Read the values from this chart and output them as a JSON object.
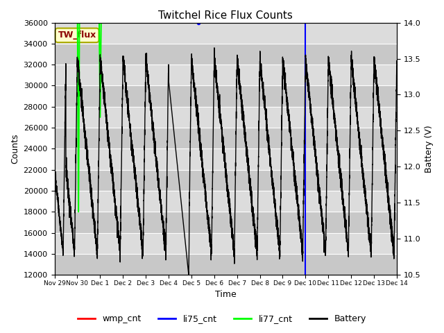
{
  "title": "Twitchel Rice Flux Counts",
  "xlabel": "Time",
  "ylabel_left": "Counts",
  "ylabel_right": "Battery (V)",
  "ylim_left": [
    12000,
    36000
  ],
  "ylim_right": [
    10.5,
    14.0
  ],
  "bg_color": "#dcdcdc",
  "annotation_text": "TW_flux",
  "annotation_color": "#8B0000",
  "annotation_bg": "#ffffcc",
  "annotation_border": "#aaaa00",
  "xtick_labels": [
    "Nov 29",
    "Nov 30",
    "Dec 1",
    "Dec 2",
    "Dec 3",
    "Dec 4",
    "Dec 5",
    "Dec 6",
    "Dec 7",
    "Dec 8",
    "Dec 9",
    "Dec 10",
    "Dec 11",
    "Dec 12",
    "Dec 13",
    "Dec 14"
  ],
  "yticks_left": [
    12000,
    14000,
    16000,
    18000,
    20000,
    22000,
    24000,
    26000,
    28000,
    30000,
    32000,
    34000,
    36000
  ],
  "yticks_right": [
    10.5,
    11.0,
    11.5,
    12.0,
    12.5,
    13.0,
    13.5,
    14.0
  ],
  "colors": {
    "wmp_cnt": "#ff0000",
    "li75_cnt": "#0000ff",
    "li77_cnt": "#00ff00",
    "battery": "#000000"
  },
  "total_days": 15,
  "n_pts": 6000,
  "band_colors": [
    "#c8c8c8",
    "#dcdcdc"
  ]
}
